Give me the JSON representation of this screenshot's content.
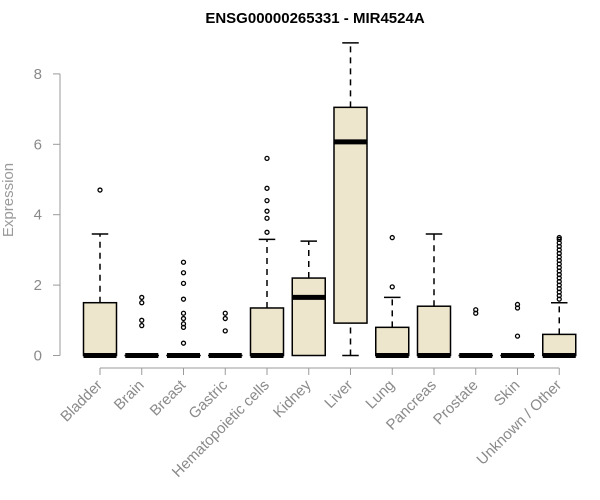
{
  "chart_data": {
    "type": "boxplot",
    "title": "ENSG00000265331 - MIR4524A",
    "xlabel": "",
    "ylabel": "Expression",
    "ylim": [
      0,
      9
    ],
    "yticks": [
      0,
      2,
      4,
      6,
      8
    ],
    "grid": false,
    "box_fill": "#ede6cc",
    "categories": [
      "Bladder",
      "Brain",
      "Breast",
      "Gastric",
      "Hematopoietic cells",
      "Kidney",
      "Liver",
      "Lung",
      "Pancreas",
      "Prostate",
      "Skin",
      "Unknown / Other"
    ],
    "boxes": [
      {
        "category": "Bladder",
        "whisker_low": 0,
        "q1": 0,
        "median": 0,
        "q3": 1.5,
        "whisker_high": 3.45,
        "outliers": [
          4.7
        ]
      },
      {
        "category": "Brain",
        "whisker_low": 0,
        "q1": 0,
        "median": 0,
        "q3": 0,
        "whisker_high": 0,
        "outliers": [
          0.85,
          1.0,
          1.5,
          1.65
        ]
      },
      {
        "category": "Breast",
        "whisker_low": 0,
        "q1": 0,
        "median": 0,
        "q3": 0,
        "whisker_high": 0,
        "outliers": [
          0.35,
          0.8,
          0.9,
          1.05,
          1.2,
          1.6,
          2.05,
          2.35,
          2.65
        ]
      },
      {
        "category": "Gastric",
        "whisker_low": 0,
        "q1": 0,
        "median": 0,
        "q3": 0,
        "whisker_high": 0,
        "outliers": [
          0.7,
          1.05,
          1.2
        ]
      },
      {
        "category": "Hematopoietic cells",
        "whisker_low": 0,
        "q1": 0,
        "median": 0,
        "q3": 1.35,
        "whisker_high": 3.3,
        "outliers": [
          3.5,
          3.9,
          4.1,
          4.4,
          4.75,
          5.6
        ]
      },
      {
        "category": "Kidney",
        "whisker_low": 0,
        "q1": 0,
        "median": 1.65,
        "q3": 2.2,
        "whisker_high": 3.25,
        "outliers": []
      },
      {
        "category": "Liver",
        "whisker_low": 0,
        "q1": 0.92,
        "median": 6.07,
        "q3": 7.05,
        "whisker_high": 8.88,
        "outliers": []
      },
      {
        "category": "Lung",
        "whisker_low": 0,
        "q1": 0,
        "median": 0,
        "q3": 0.8,
        "whisker_high": 1.65,
        "outliers": [
          1.95,
          3.35
        ]
      },
      {
        "category": "Pancreas",
        "whisker_low": 0,
        "q1": 0,
        "median": 0,
        "q3": 1.4,
        "whisker_high": 3.45,
        "outliers": []
      },
      {
        "category": "Prostate",
        "whisker_low": 0,
        "q1": 0,
        "median": 0,
        "q3": 0,
        "whisker_high": 0,
        "outliers": [
          1.2,
          1.3
        ]
      },
      {
        "category": "Skin",
        "whisker_low": 0,
        "q1": 0,
        "median": 0,
        "q3": 0,
        "whisker_high": 0,
        "outliers": [
          0.55,
          1.35,
          1.45
        ]
      },
      {
        "category": "Unknown / Other",
        "whisker_low": 0,
        "q1": 0,
        "median": 0,
        "q3": 0.6,
        "whisker_high": 1.5,
        "outliers": [
          1.6,
          1.7,
          1.8,
          1.9,
          2.0,
          2.1,
          2.2,
          2.3,
          2.4,
          2.5,
          2.6,
          2.7,
          2.8,
          2.9,
          3.0,
          3.1,
          3.2,
          3.3,
          3.35
        ]
      }
    ]
  }
}
